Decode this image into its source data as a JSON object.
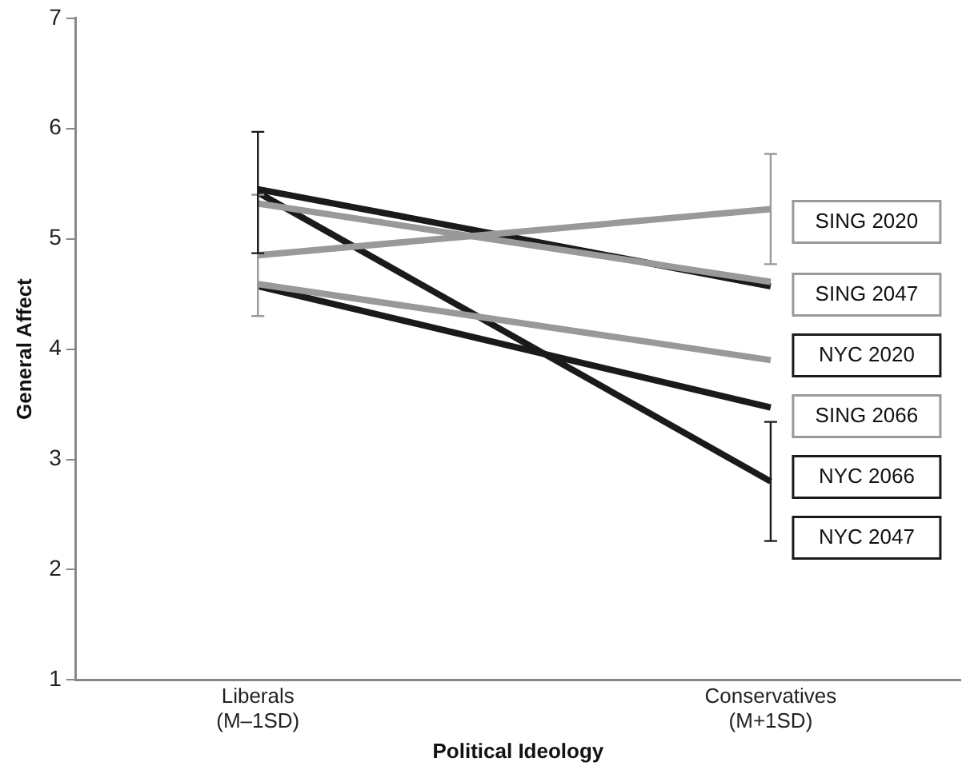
{
  "chart_data": {
    "type": "line",
    "xlabel": "Political Ideology",
    "ylabel": "General Affect",
    "categories": [
      "Liberals\n(M–1SD)",
      "Conservatives\n(M+1SD)"
    ],
    "ylim": [
      1,
      7
    ],
    "yticks": [
      1,
      2,
      3,
      4,
      5,
      6,
      7
    ],
    "grid": false,
    "legend": false,
    "marker": "none",
    "line_style": "solid",
    "series": [
      {
        "name": "SING 2020",
        "color": "#999999",
        "values": [
          4.85,
          5.27
        ],
        "errors": [
          0.55,
          0.5
        ]
      },
      {
        "name": "SING 2047",
        "color": "#999999",
        "values": [
          5.32,
          4.61
        ],
        "errors": [
          null,
          null
        ]
      },
      {
        "name": "NYC 2020",
        "color": "#1a1a1a",
        "values": [
          5.45,
          4.57
        ],
        "errors": [
          null,
          null
        ]
      },
      {
        "name": "SING 2066",
        "color": "#999999",
        "values": [
          4.59,
          3.9
        ],
        "errors": [
          null,
          null
        ]
      },
      {
        "name": "NYC 2066",
        "color": "#1a1a1a",
        "values": [
          4.57,
          3.47
        ],
        "errors": [
          null,
          null
        ]
      },
      {
        "name": "NYC 2047",
        "color": "#1a1a1a",
        "values": [
          5.42,
          2.8
        ],
        "errors": [
          0.55,
          0.54
        ]
      }
    ]
  }
}
